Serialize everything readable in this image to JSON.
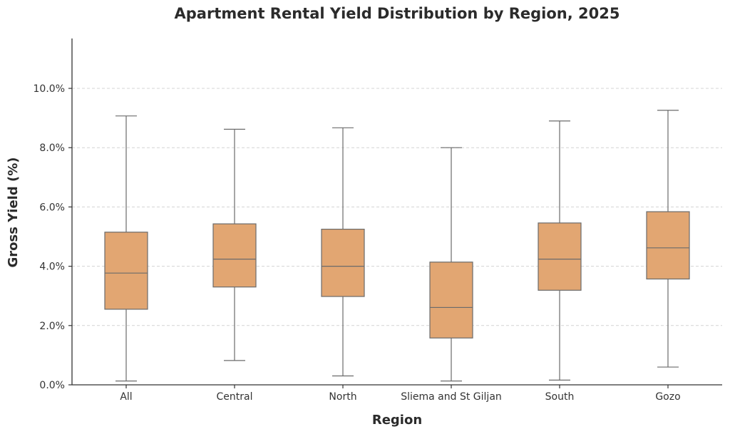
{
  "chart_data": {
    "type": "boxplot",
    "title": "Apartment Rental Yield Distribution by Region, 2025",
    "xlabel": "Region",
    "ylabel": "Gross Yield (%)",
    "ylim": [
      0,
      11.6
    ],
    "yticks": [
      0,
      2,
      4,
      6,
      8,
      10
    ],
    "ytick_labels": [
      "0.0%",
      "2.0%",
      "4.0%",
      "6.0%",
      "8.0%",
      "10.0%"
    ],
    "grid": "y-dashed",
    "box_color": "#e2a672",
    "line_color": "#6b6b6b",
    "categories": [
      "All",
      "Central",
      "North",
      "Sliema and St Giljan",
      "South",
      "Gozo"
    ],
    "boxes": [
      {
        "min": 0.13,
        "q1": 2.55,
        "median": 3.77,
        "q3": 5.15,
        "max": 9.07
      },
      {
        "min": 0.82,
        "q1": 3.3,
        "median": 4.24,
        "q3": 5.43,
        "max": 8.62
      },
      {
        "min": 0.3,
        "q1": 2.98,
        "median": 4.0,
        "q3": 5.25,
        "max": 8.67
      },
      {
        "min": 0.13,
        "q1": 1.58,
        "median": 2.61,
        "q3": 4.14,
        "max": 8.0
      },
      {
        "min": 0.16,
        "q1": 3.19,
        "median": 4.24,
        "q3": 5.46,
        "max": 8.9
      },
      {
        "min": 0.6,
        "q1": 3.57,
        "median": 4.62,
        "q3": 5.84,
        "max": 9.26
      }
    ]
  }
}
